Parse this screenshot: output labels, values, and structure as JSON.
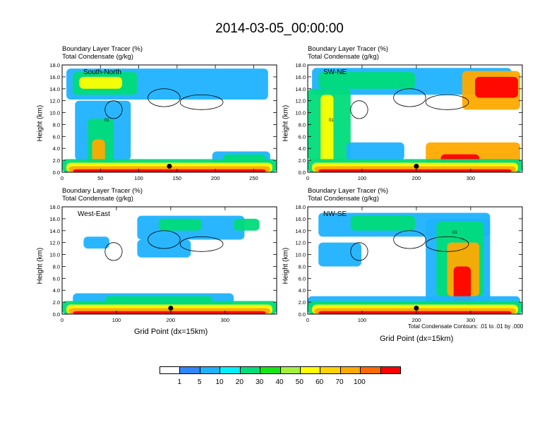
{
  "title": "2014-03-05_00:00:00",
  "panel_title_line1": "Boundary Layer Tracer   (%)",
  "panel_title_line2": "Total Condensate   (g/kg)",
  "ylabel": "Height (km)",
  "xlabel": "Grid Point (dx=15km)",
  "contour_note": "Total Condensate Contours: .01 to .01 by .000",
  "contour_label": "01",
  "colorbar": {
    "colors": [
      "#ffffff",
      "#2f87ff",
      "#1fb2ff",
      "#00f0ff",
      "#00dc7a",
      "#14e614",
      "#a6f03c",
      "#ffff00",
      "#ffd200",
      "#ffaa00",
      "#ff6a00",
      "#ff0000"
    ],
    "labels": [
      "1",
      "5",
      "10",
      "20",
      "30",
      "40",
      "50",
      "60",
      "70",
      "100"
    ]
  },
  "chart_data": [
    {
      "type": "heatmap",
      "label": "South-North",
      "xlim": [
        0,
        280
      ],
      "xticks": [
        "0",
        "50",
        "100",
        "150",
        "200",
        "250"
      ],
      "ylim": [
        0,
        18
      ],
      "yticks": [
        "0.0",
        "2.0",
        "4.0",
        "6.0",
        "8.0",
        "10.0",
        "12.0",
        "14.0",
        "16.0",
        "18.0"
      ],
      "marker": {
        "x": 140,
        "y": 1.0
      }
    },
    {
      "type": "heatmap",
      "label": "SW-NE",
      "xlim": [
        0,
        395
      ],
      "xticks": [
        "0",
        "100",
        "200",
        "300"
      ],
      "ylim": [
        0,
        18
      ],
      "yticks": [
        "0.0",
        "2.0",
        "4.0",
        "6.0",
        "8.0",
        "10.0",
        "12.0",
        "14.0",
        "16.0",
        "18.0"
      ],
      "marker": {
        "x": 200,
        "y": 1.0
      }
    },
    {
      "type": "heatmap",
      "label": "West-East",
      "xlim": [
        0,
        395
      ],
      "xticks": [
        "0",
        "100",
        "200",
        "300"
      ],
      "ylim": [
        0,
        18
      ],
      "yticks": [
        "0.0",
        "2.0",
        "4.0",
        "6.0",
        "8.0",
        "10.0",
        "12.0",
        "14.0",
        "16.0",
        "18.0"
      ],
      "marker": {
        "x": 200,
        "y": 1.0
      }
    },
    {
      "type": "heatmap",
      "label": "NW-SE",
      "xlim": [
        0,
        395
      ],
      "xticks": [
        "0",
        "100",
        "200",
        "300"
      ],
      "ylim": [
        0,
        18
      ],
      "yticks": [
        "0.0",
        "2.0",
        "4.0",
        "6.0",
        "8.0",
        "10.0",
        "12.0",
        "14.0",
        "16.0",
        "18.0"
      ],
      "marker": {
        "x": 200,
        "y": 1.0
      }
    }
  ]
}
